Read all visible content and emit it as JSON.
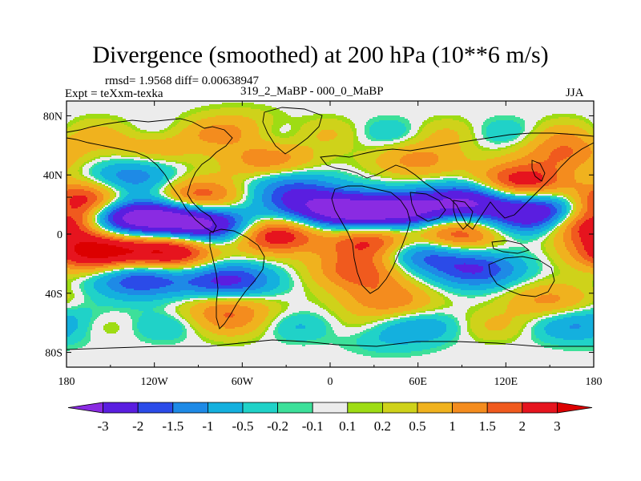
{
  "chart_data": {
    "type": "heatmap",
    "title": "Divergence (smoothed) at 200 hPa (10**6 m/s)",
    "stats": "rmsd= 1.9568 diff= 0.00638947",
    "experiment": "Expt = teXxm-texka",
    "cases": "319_2_MaBP - 000_0_MaBP",
    "season": "JJA",
    "x_range": [
      -180,
      180
    ],
    "y_range": [
      -90,
      90
    ],
    "x_ticks": [
      {
        "value": -180,
        "label": "180"
      },
      {
        "value": -120,
        "label": "120W"
      },
      {
        "value": -60,
        "label": "60W"
      },
      {
        "value": 0,
        "label": "0"
      },
      {
        "value": 60,
        "label": "60E"
      },
      {
        "value": 120,
        "label": "120E"
      },
      {
        "value": 180,
        "label": "180"
      }
    ],
    "y_ticks": [
      {
        "value": 80,
        "label": "80N"
      },
      {
        "value": 40,
        "label": "40N"
      },
      {
        "value": 0,
        "label": "0"
      },
      {
        "value": -40,
        "label": "40S"
      },
      {
        "value": -80,
        "label": "80S"
      }
    ],
    "contour_levels": [
      -3,
      -2,
      -1.5,
      -1,
      -0.5,
      -0.2,
      -0.1,
      0.1,
      0.2,
      0.5,
      1,
      1.5,
      2,
      3
    ],
    "level_labels": [
      "-3",
      "-2",
      "-1.5",
      "-1",
      "-0.5",
      "-0.2",
      "-0.1",
      "0.1",
      "0.2",
      "0.5",
      "1",
      "1.5",
      "2",
      "3"
    ],
    "colors": [
      "#8a2be2",
      "#5a1ee0",
      "#2b4be8",
      "#1e8ae6",
      "#14b0de",
      "#20d2c8",
      "#3de09a",
      "#ececec",
      "#9edc14",
      "#cfd21a",
      "#f0b21e",
      "#f48c1e",
      "#f05a1e",
      "#e6141e",
      "#dc0000"
    ],
    "features": [
      {
        "lon": -145,
        "lat": 12,
        "amp": -3.2
      },
      {
        "lon": -110,
        "lat": 10,
        "amp": -3.0
      },
      {
        "lon": -75,
        "lat": 5,
        "amp": -2.8
      },
      {
        "lon": -135,
        "lat": 38,
        "amp": -1.5
      },
      {
        "lon": 10,
        "lat": 15,
        "amp": -3.0
      },
      {
        "lon": 50,
        "lat": 15,
        "amp": -3.2
      },
      {
        "lon": 95,
        "lat": 22,
        "amp": -3.0
      },
      {
        "lon": 140,
        "lat": 12,
        "amp": -2.8
      },
      {
        "lon": 165,
        "lat": 18,
        "amp": -2.0
      },
      {
        "lon": -70,
        "lat": -32,
        "amp": -2.4
      },
      {
        "lon": -130,
        "lat": -30,
        "amp": -2.2
      },
      {
        "lon": 60,
        "lat": -12,
        "amp": -2.2
      },
      {
        "lon": 100,
        "lat": -24,
        "amp": -2.0
      },
      {
        "lon": -30,
        "lat": 35,
        "amp": -1.4
      },
      {
        "lon": -170,
        "lat": 22,
        "amp": 3.4
      },
      {
        "lon": -160,
        "lat": -12,
        "amp": 3.4
      },
      {
        "lon": -110,
        "lat": -12,
        "amp": 3.2
      },
      {
        "lon": -90,
        "lat": 25,
        "amp": 2.2
      },
      {
        "lon": -40,
        "lat": 0,
        "amp": 3.0
      },
      {
        "lon": 30,
        "lat": -5,
        "amp": 2.6
      },
      {
        "lon": 85,
        "lat": 0,
        "amp": 2.4
      },
      {
        "lon": 130,
        "lat": 35,
        "amp": 2.6
      },
      {
        "lon": 175,
        "lat": 8,
        "amp": 3.4
      },
      {
        "lon": -70,
        "lat": -50,
        "amp": 1.5
      },
      {
        "lon": 40,
        "lat": -45,
        "amp": 1.4
      },
      {
        "lon": 150,
        "lat": -45,
        "amp": 1.2
      },
      {
        "lon": -40,
        "lat": 48,
        "amp": 1.6
      },
      {
        "lon": 60,
        "lat": 50,
        "amp": 1.2
      },
      {
        "lon": 160,
        "lat": 55,
        "amp": 1.4
      },
      {
        "lon": -120,
        "lat": 60,
        "amp": 1.0
      },
      {
        "lon": 20,
        "lat": -25,
        "amp": 1.8
      },
      {
        "lon": -20,
        "lat": 20,
        "amp": -1.6
      },
      {
        "lon": 180,
        "lat": -60,
        "amp": -0.9
      },
      {
        "lon": 40,
        "lat": -65,
        "amp": -0.9
      },
      {
        "lon": -60,
        "lat": 70,
        "amp": 0.9
      }
    ]
  }
}
